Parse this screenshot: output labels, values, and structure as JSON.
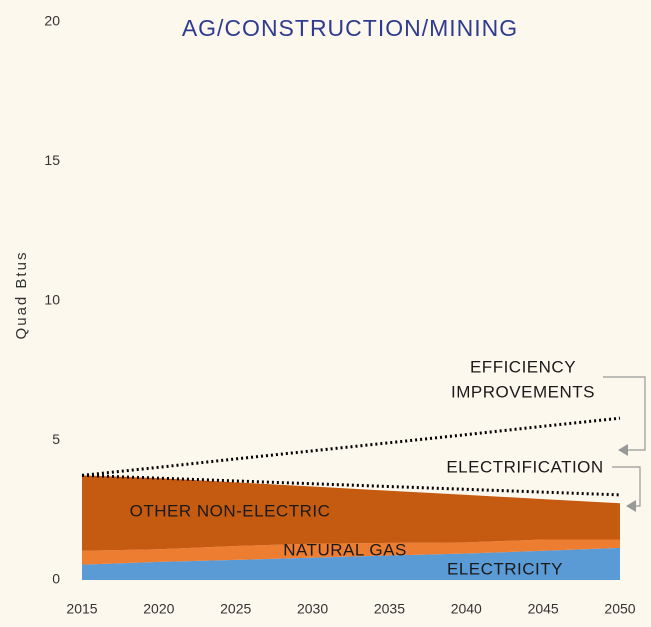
{
  "chart_data": {
    "type": "stacked_area",
    "title": "AG/CONSTRUCTION/MINING",
    "y_label": "Quad Btus",
    "x": [
      2015,
      2020,
      2025,
      2030,
      2035,
      2040,
      2045,
      2050
    ],
    "xlim": [
      2015,
      2050
    ],
    "xticks": [
      2015,
      2020,
      2025,
      2030,
      2035,
      2040,
      2045,
      2050
    ],
    "ylim": [
      0,
      20
    ],
    "yticks": [
      0,
      5,
      10,
      15,
      20
    ],
    "series": [
      {
        "name": "ELECTRICITY",
        "color": "#5b9bd5",
        "values": [
          0.55,
          0.65,
          0.72,
          0.8,
          0.88,
          0.95,
          1.05,
          1.15
        ]
      },
      {
        "name": "NATURAL GAS",
        "color": "#ed7d31",
        "values": [
          0.5,
          0.45,
          0.5,
          0.5,
          0.45,
          0.4,
          0.4,
          0.3
        ]
      },
      {
        "name": "OTHER NON-ELECTRIC",
        "color": "#c55a11",
        "values": [
          2.7,
          2.55,
          2.28,
          2.05,
          1.87,
          1.7,
          1.45,
          1.3
        ]
      }
    ],
    "lines": [
      {
        "name": [
          "EFFICIENCY",
          "IMPROVEMENTS"
        ],
        "color": "#000000",
        "values": [
          3.75,
          4.04,
          4.34,
          4.63,
          4.92,
          5.21,
          5.51,
          5.8
        ]
      },
      {
        "name": [
          "ELECTRIFICATION"
        ],
        "color": "#000000",
        "values": [
          3.75,
          3.65,
          3.55,
          3.45,
          3.35,
          3.25,
          3.15,
          3.05
        ]
      }
    ]
  }
}
